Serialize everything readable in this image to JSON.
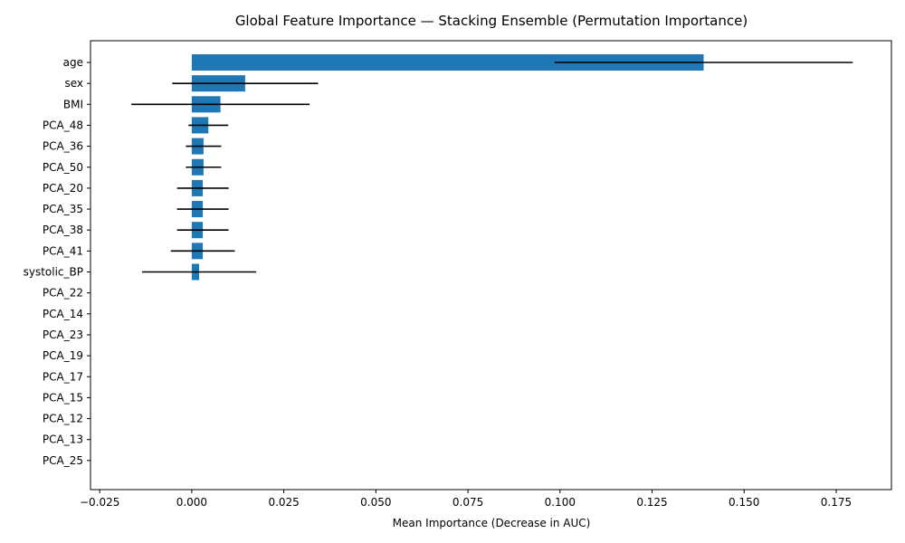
{
  "chart_data": {
    "type": "bar",
    "orientation": "horizontal",
    "title": "Global Feature Importance — Stacking Ensemble (Permutation Importance)",
    "xlabel": "Mean Importance (Decrease in AUC)",
    "ylabel": "",
    "xlim": [
      -0.0275,
      0.19
    ],
    "xticks": [
      -0.025,
      0.0,
      0.025,
      0.05,
      0.075,
      0.1,
      0.125,
      0.15,
      0.175
    ],
    "xtick_labels": [
      "−0.025",
      "0.000",
      "0.025",
      "0.050",
      "0.075",
      "0.100",
      "0.125",
      "0.150",
      "0.175"
    ],
    "categories": [
      "age",
      "sex",
      "BMI",
      "PCA_48",
      "PCA_36",
      "PCA_50",
      "PCA_20",
      "PCA_35",
      "PCA_38",
      "PCA_41",
      "systolic_BP",
      "PCA_22",
      "PCA_14",
      "PCA_23",
      "PCA_19",
      "PCA_17",
      "PCA_15",
      "PCA_12",
      "PCA_13",
      "PCA_25"
    ],
    "values": [
      0.139,
      0.0145,
      0.0078,
      0.0045,
      0.0032,
      0.0032,
      0.003,
      0.003,
      0.003,
      0.003,
      0.002,
      0,
      0,
      0,
      0,
      0,
      0,
      0,
      0,
      0
    ],
    "errors": [
      0.0405,
      0.0198,
      0.0242,
      0.0054,
      0.0048,
      0.0048,
      0.007,
      0.007,
      0.007,
      0.0087,
      0.0155,
      0,
      0,
      0,
      0,
      0,
      0,
      0,
      0,
      0
    ],
    "bar_color": "#1f77b4",
    "error_color": "#000000",
    "grid": false,
    "legend": "none"
  }
}
